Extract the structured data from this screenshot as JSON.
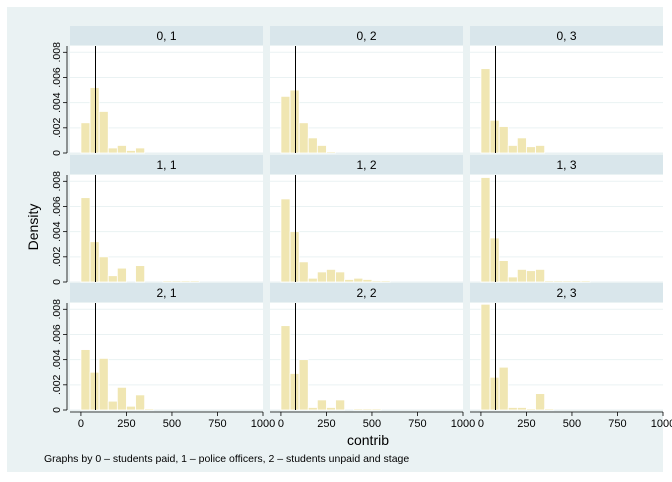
{
  "chart_data": {
    "type": "histogram",
    "ylabel": "Density",
    "xlabel": "contrib",
    "note": "Graphs by 0 – students paid, 1 – police officers, 2 – students unpaid and stage",
    "x_ticks": [
      "0",
      "250",
      "500",
      "750",
      "1000"
    ],
    "x_tick_values": [
      0,
      250,
      500,
      750,
      1000
    ],
    "xlim": [
      -60,
      1000
    ],
    "y_ticks": [
      "0",
      ".002",
      ".004",
      ".006",
      ".008"
    ],
    "y_tick_values": [
      0,
      0.002,
      0.004,
      0.006,
      0.008
    ],
    "ylim": [
      0,
      0.0085
    ],
    "bin_width": 50,
    "reference_line_x": 80,
    "colors": {
      "background": "#eaf2f3",
      "panel": "#ffffff",
      "strip": "#d9e6eb",
      "bar": "#f0e6b2",
      "bar_stroke": "#ffffff",
      "line": "#000000",
      "text": "#000000"
    },
    "panels": [
      {
        "label": "0, 1",
        "bins": [
          [
            0,
            0.0024
          ],
          [
            50,
            0.0052
          ],
          [
            100,
            0.0033
          ],
          [
            150,
            0.0004
          ],
          [
            200,
            0.0006
          ],
          [
            250,
            0.0002
          ],
          [
            300,
            0.0004
          ]
        ]
      },
      {
        "label": "0, 2",
        "bins": [
          [
            0,
            0.0045
          ],
          [
            50,
            0.005
          ],
          [
            100,
            0.0024
          ],
          [
            150,
            0.0012
          ],
          [
            200,
            0.0006
          ],
          [
            250,
            0.0001
          ]
        ]
      },
      {
        "label": "0, 3",
        "bins": [
          [
            0,
            0.0067
          ],
          [
            50,
            0.0026
          ],
          [
            100,
            0.0021
          ],
          [
            150,
            0.0006
          ],
          [
            200,
            0.0012
          ],
          [
            250,
            0.0005
          ],
          [
            300,
            0.0006
          ]
        ]
      },
      {
        "label": "1, 1",
        "bins": [
          [
            0,
            0.0067
          ],
          [
            50,
            0.0032
          ],
          [
            100,
            0.002
          ],
          [
            150,
            0.0005
          ],
          [
            200,
            0.0011
          ],
          [
            300,
            0.0013
          ],
          [
            450,
            0.0001
          ],
          [
            500,
            0.0001
          ],
          [
            550,
            0.0001
          ],
          [
            600,
            0.0001
          ]
        ]
      },
      {
        "label": "1, 2",
        "bins": [
          [
            0,
            0.0066
          ],
          [
            50,
            0.004
          ],
          [
            100,
            0.0016
          ],
          [
            150,
            0.0003
          ],
          [
            200,
            0.0008
          ],
          [
            250,
            0.001
          ],
          [
            300,
            0.0008
          ],
          [
            350,
            0.0002
          ],
          [
            400,
            0.0003
          ],
          [
            450,
            0.0002
          ],
          [
            500,
            0.0001
          ],
          [
            550,
            0.0001
          ]
        ]
      },
      {
        "label": "1, 3",
        "bins": [
          [
            0,
            0.0083
          ],
          [
            50,
            0.0035
          ],
          [
            100,
            0.0017
          ],
          [
            150,
            0.0004
          ],
          [
            200,
            0.001
          ],
          [
            250,
            0.0009
          ],
          [
            300,
            0.001
          ],
          [
            350,
            0.0001
          ],
          [
            400,
            0.0001
          ],
          [
            450,
            0.0001
          ],
          [
            500,
            0.0001
          ],
          [
            550,
            0.0001
          ]
        ]
      },
      {
        "label": "2, 1",
        "bins": [
          [
            0,
            0.0048
          ],
          [
            50,
            0.003
          ],
          [
            100,
            0.0041
          ],
          [
            150,
            0.0007
          ],
          [
            200,
            0.0018
          ],
          [
            250,
            0.0003
          ],
          [
            300,
            0.0012
          ],
          [
            350,
            0.0001
          ]
        ]
      },
      {
        "label": "2, 2",
        "bins": [
          [
            0,
            0.0067
          ],
          [
            50,
            0.0029
          ],
          [
            100,
            0.004
          ],
          [
            150,
            0.0002
          ],
          [
            200,
            0.0008
          ],
          [
            250,
            0.0002
          ],
          [
            300,
            0.0008
          ],
          [
            400,
            0.0001
          ],
          [
            450,
            0.0001
          ],
          [
            500,
            0.0001
          ]
        ]
      },
      {
        "label": "2, 3",
        "bins": [
          [
            0,
            0.0084
          ],
          [
            50,
            0.0026
          ],
          [
            100,
            0.0034
          ],
          [
            150,
            0.0002
          ],
          [
            200,
            0.0002
          ],
          [
            250,
            0.0001
          ],
          [
            300,
            0.0013
          ],
          [
            350,
            0.0001
          ]
        ]
      }
    ]
  }
}
